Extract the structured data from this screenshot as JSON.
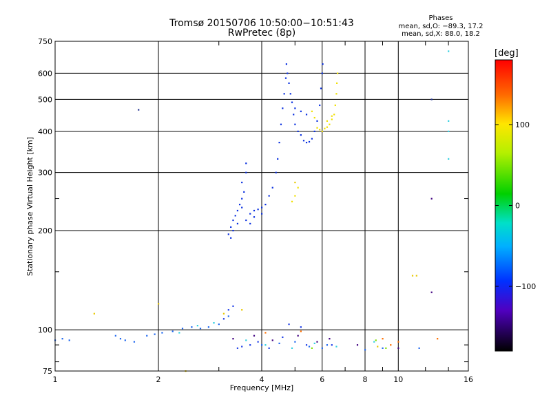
{
  "chart_data": {
    "type": "scatter",
    "title": "Tromsø 20150706 10:50:00−10:51:43",
    "subtitle": "RwPretec (8p)",
    "xlabel": "Frequency [MHz]",
    "ylabel": "Stationary phase Virtual Height [km]",
    "x_scale": "log",
    "y_scale": "log",
    "xlim": [
      1,
      16
    ],
    "ylim": [
      75,
      750
    ],
    "x_ticks": [
      "1",
      "2",
      "4",
      "6",
      "8",
      "10",
      "16"
    ],
    "y_ticks": [
      "75",
      "100",
      "200",
      "300",
      "400",
      "500",
      "600",
      "750"
    ],
    "grid": true,
    "phase_stats": {
      "heading": "Phases",
      "line_o": "mean, sd,O: −89.3, 17.2",
      "line_x": "mean, sd,X:  88.0, 18.2"
    },
    "colorbar": {
      "label": "[deg]",
      "range": [
        -180,
        180
      ],
      "ticks": [
        "100",
        "0",
        "−100"
      ]
    },
    "series": [
      {
        "color": "#0a30e0",
        "points": [
          [
            3.2,
            195
          ],
          [
            3.25,
            205
          ],
          [
            3.3,
            215
          ],
          [
            3.35,
            222
          ],
          [
            3.4,
            230
          ],
          [
            3.45,
            240
          ],
          [
            3.5,
            250
          ],
          [
            3.55,
            262
          ],
          [
            3.6,
            300
          ],
          [
            3.6,
            320
          ],
          [
            3.5,
            280
          ],
          [
            3.4,
            210
          ],
          [
            3.3,
            200
          ],
          [
            3.25,
            190
          ],
          [
            3.7,
            225
          ],
          [
            3.8,
            230
          ],
          [
            3.9,
            232
          ],
          [
            4.0,
            235
          ],
          [
            4.1,
            240
          ],
          [
            4.2,
            255
          ],
          [
            4.3,
            270
          ],
          [
            4.4,
            300
          ],
          [
            4.45,
            330
          ],
          [
            4.5,
            370
          ],
          [
            4.55,
            420
          ],
          [
            4.6,
            470
          ],
          [
            4.65,
            520
          ],
          [
            4.7,
            580
          ],
          [
            4.72,
            640
          ],
          [
            4.75,
            600
          ],
          [
            4.8,
            560
          ],
          [
            4.85,
            520
          ],
          [
            4.9,
            490
          ],
          [
            4.95,
            450
          ],
          [
            5.0,
            420
          ],
          [
            5.1,
            400
          ],
          [
            5.2,
            390
          ],
          [
            5.3,
            375
          ],
          [
            5.4,
            370
          ],
          [
            5.5,
            372
          ],
          [
            5.6,
            380
          ],
          [
            5.7,
            400
          ],
          [
            5.8,
            430
          ],
          [
            5.9,
            480
          ],
          [
            5.95,
            540
          ],
          [
            6.0,
            600
          ],
          [
            6.02,
            640
          ],
          [
            5.0,
            470
          ],
          [
            5.2,
            460
          ],
          [
            5.4,
            450
          ],
          [
            3.6,
            215
          ],
          [
            3.7,
            210
          ],
          [
            3.8,
            220
          ],
          [
            4.0,
            225
          ],
          [
            3.5,
            235
          ]
        ]
      },
      {
        "color": "#f0e000",
        "points": [
          [
            5.8,
            410
          ],
          [
            5.9,
            405
          ],
          [
            6.0,
            400
          ],
          [
            6.1,
            408
          ],
          [
            6.2,
            412
          ],
          [
            6.3,
            420
          ],
          [
            6.4,
            435
          ],
          [
            6.5,
            450
          ],
          [
            6.55,
            480
          ],
          [
            6.6,
            520
          ],
          [
            6.62,
            560
          ],
          [
            6.65,
            600
          ],
          [
            4.9,
            245
          ],
          [
            5.0,
            255
          ],
          [
            5.1,
            270
          ],
          [
            5.6,
            460
          ],
          [
            5.7,
            440
          ],
          [
            6.2,
            430
          ],
          [
            6.4,
            445
          ]
        ]
      },
      {
        "color": "#1f68f0",
        "points": [
          [
            1.0,
            93
          ],
          [
            1.05,
            94
          ],
          [
            1.1,
            93
          ],
          [
            1.5,
            96
          ],
          [
            1.55,
            94
          ],
          [
            1.6,
            93
          ],
          [
            1.7,
            92
          ],
          [
            1.85,
            96
          ],
          [
            1.95,
            97
          ],
          [
            2.05,
            98
          ],
          [
            2.2,
            99
          ],
          [
            2.35,
            101
          ],
          [
            2.5,
            102
          ],
          [
            2.65,
            101
          ],
          [
            2.8,
            102
          ],
          [
            3.0,
            104
          ],
          [
            3.2,
            110
          ],
          [
            4.0,
            90
          ],
          [
            4.5,
            91
          ],
          [
            5.0,
            92
          ],
          [
            5.5,
            89
          ],
          [
            6.0,
            88
          ],
          [
            6.2,
            90
          ],
          [
            8.0,
            87
          ],
          [
            9.0,
            88
          ],
          [
            11.5,
            88
          ]
        ]
      },
      {
        "color": "#2040e8",
        "points": [
          [
            3.1,
            108
          ],
          [
            3.2,
            115
          ],
          [
            3.3,
            118
          ],
          [
            3.4,
            88
          ],
          [
            3.5,
            89
          ],
          [
            3.7,
            90
          ],
          [
            3.9,
            92
          ],
          [
            4.2,
            88
          ],
          [
            4.6,
            95
          ],
          [
            4.8,
            104
          ],
          [
            5.2,
            102
          ],
          [
            5.4,
            90
          ],
          [
            6.4,
            90
          ]
        ]
      },
      {
        "color": "#30d0e0",
        "points": [
          [
            2.3,
            98
          ],
          [
            2.6,
            103
          ],
          [
            2.9,
            105
          ],
          [
            3.6,
            93
          ],
          [
            4.1,
            90
          ],
          [
            4.9,
            88
          ],
          [
            5.7,
            91
          ],
          [
            6.6,
            89
          ],
          [
            8.5,
            92
          ],
          [
            14.0,
            330
          ],
          [
            14.0,
            400
          ],
          [
            14.0,
            430
          ],
          [
            14.0,
            700
          ]
        ]
      },
      {
        "color": "#400080",
        "points": [
          [
            3.3,
            94
          ],
          [
            3.8,
            96
          ],
          [
            4.3,
            93
          ],
          [
            5.1,
            96
          ],
          [
            5.8,
            92
          ],
          [
            6.3,
            94
          ],
          [
            7.6,
            90
          ],
          [
            10.0,
            88
          ],
          [
            12.5,
            250
          ],
          [
            12.5,
            130
          ]
        ]
      },
      {
        "color": "#ff7000",
        "points": [
          [
            9.0,
            94
          ],
          [
            9.5,
            90
          ],
          [
            10.0,
            92
          ],
          [
            13.0,
            94
          ],
          [
            4.1,
            98
          ],
          [
            5.2,
            99
          ]
        ]
      },
      {
        "color": "#e8c800",
        "points": [
          [
            1.3,
            112
          ],
          [
            2.0,
            120
          ],
          [
            2.4,
            75
          ],
          [
            3.1,
            112
          ],
          [
            3.5,
            115
          ],
          [
            11.0,
            146
          ],
          [
            11.3,
            146
          ],
          [
            8.7,
            89
          ],
          [
            5.0,
            280
          ]
        ]
      },
      {
        "color": "#80e000",
        "points": [
          [
            5.6,
            88
          ],
          [
            8.6,
            93
          ],
          [
            9.2,
            88
          ]
        ]
      },
      {
        "color": "#203090",
        "points": [
          [
            1.75,
            465
          ],
          [
            12.5,
            500
          ]
        ]
      }
    ]
  }
}
